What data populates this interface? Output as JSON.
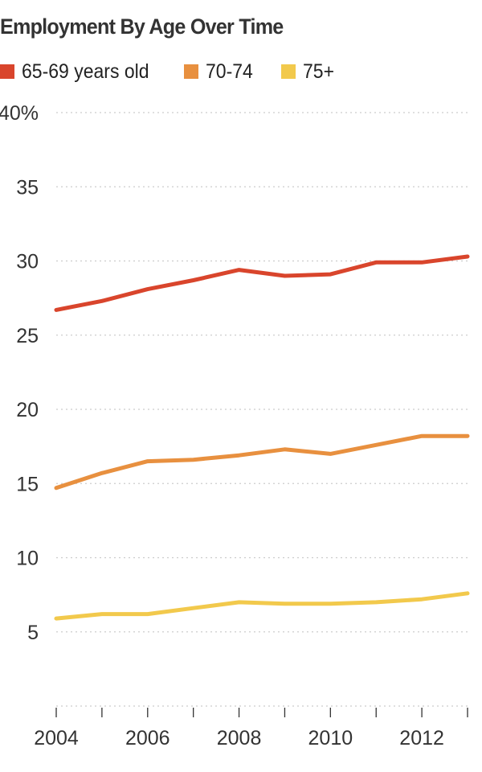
{
  "chart_data": {
    "type": "line",
    "title": "Employment By Age Over Time",
    "xlabel": "",
    "ylabel": "",
    "x": [
      2004,
      2005,
      2006,
      2007,
      2008,
      2009,
      2010,
      2011,
      2012,
      2013
    ],
    "xtick_values": [
      2004,
      2006,
      2008,
      2010,
      2012
    ],
    "xtick_labels": [
      "2004",
      "2006",
      "2008",
      "2010",
      "2012"
    ],
    "ylim": [
      0,
      40
    ],
    "ytick_values": [
      40,
      35,
      30,
      25,
      20,
      15,
      10,
      5
    ],
    "ytick_labels": [
      "40%",
      "35",
      "30",
      "25",
      "20",
      "15",
      "10",
      "5"
    ],
    "grid": true,
    "legend_position": "top-left",
    "series": [
      {
        "name": "65-69 years old",
        "color": "#d9452c",
        "values": [
          26.7,
          27.3,
          28.1,
          28.7,
          29.4,
          29.0,
          29.1,
          29.9,
          29.9,
          30.3
        ]
      },
      {
        "name": "70-74",
        "color": "#e8903f",
        "values": [
          14.7,
          15.7,
          16.5,
          16.6,
          16.9,
          17.3,
          17.0,
          17.6,
          18.2,
          18.2
        ]
      },
      {
        "name": "75+",
        "color": "#f2c94c",
        "values": [
          5.9,
          6.2,
          6.2,
          6.6,
          7.0,
          6.9,
          6.9,
          7.0,
          7.2,
          7.6
        ]
      }
    ]
  }
}
